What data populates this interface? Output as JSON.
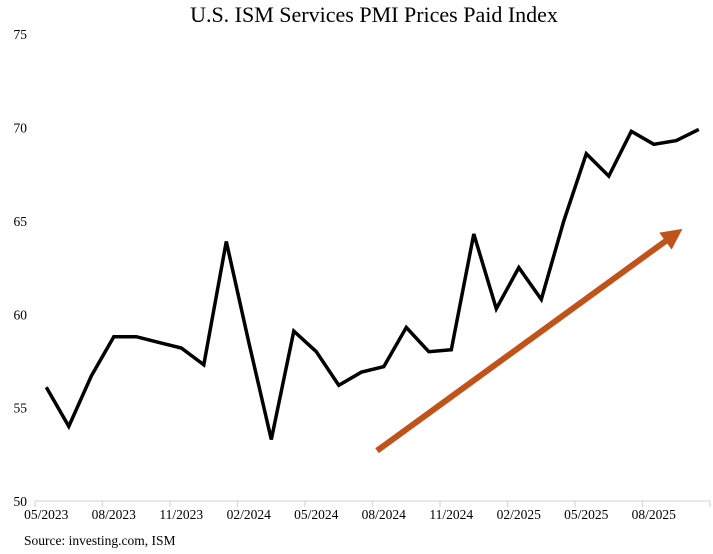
{
  "source": "Source: investing.com, ISM",
  "colors": {
    "line": "#000000",
    "arrow": "#C0521A",
    "axis": "#D9D9D9",
    "text": "#000000",
    "background": "#FFFFFF"
  },
  "chart_data": {
    "type": "line",
    "title": "U.S. ISM Services PMI Prices Paid Index",
    "x": [
      "05/2023",
      "06/2023",
      "07/2023",
      "08/2023",
      "09/2023",
      "10/2023",
      "11/2023",
      "12/2023",
      "01/2024",
      "02/2024",
      "03/2024",
      "04/2024",
      "05/2024",
      "06/2024",
      "07/2024",
      "08/2024",
      "09/2024",
      "10/2024",
      "11/2024",
      "12/2024",
      "01/2025",
      "02/2025",
      "03/2025",
      "04/2025",
      "05/2025",
      "06/2025",
      "07/2025",
      "08/2025",
      "09/2025",
      "10/2025"
    ],
    "values": [
      56.2,
      54.1,
      56.8,
      58.9,
      58.9,
      58.6,
      58.3,
      57.4,
      64.0,
      58.6,
      53.4,
      59.2,
      58.1,
      56.3,
      57.0,
      57.3,
      59.4,
      58.1,
      58.2,
      64.4,
      60.4,
      62.6,
      60.9,
      65.1,
      68.7,
      67.5,
      69.9,
      69.2,
      69.4,
      70.0
    ],
    "xlabel": "",
    "ylabel": "",
    "ylim": [
      50,
      75
    ],
    "yticks": [
      50,
      55,
      60,
      65,
      70,
      75
    ],
    "xtick_labels": [
      "05/2023",
      "08/2023",
      "11/2023",
      "02/2024",
      "05/2024",
      "08/2024",
      "11/2024",
      "02/2025",
      "05/2025",
      "08/2025"
    ],
    "xtick_every": 3,
    "grid": false,
    "legend": false,
    "annotations": [
      {
        "type": "arrow",
        "meaning": "upward-trend-arrow",
        "color": "#C0521A",
        "from": {
          "month_index": 14.7,
          "value": 52.8
        },
        "to": {
          "month_index": 28.3,
          "value": 64.7
        }
      }
    ]
  }
}
